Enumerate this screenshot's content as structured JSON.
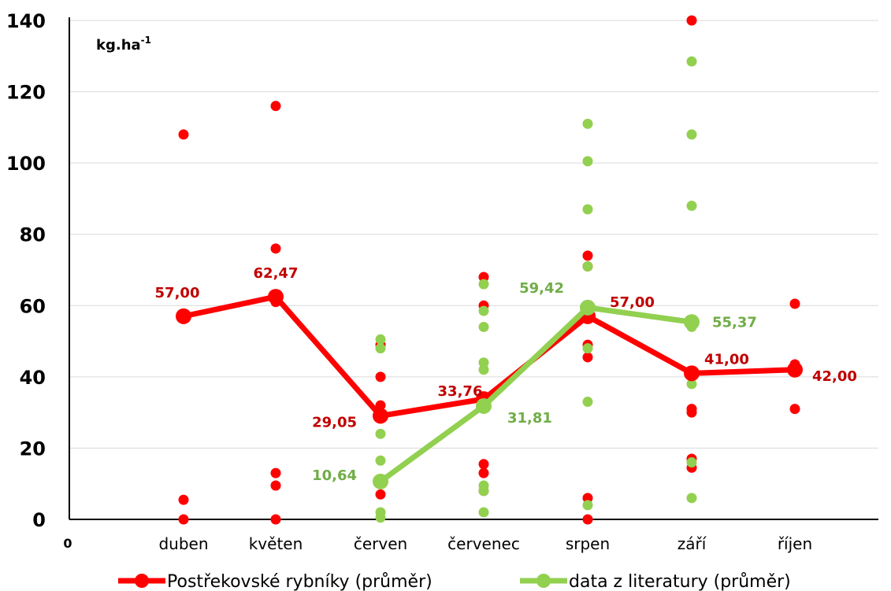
{
  "chart_data": {
    "type": "line",
    "title": "",
    "xlabel": "",
    "ylabel": "",
    "unit_label": "kg.ha",
    "unit_superscript": "-1",
    "origin_label": "0",
    "ylim": [
      0,
      140
    ],
    "yticks": [
      "0",
      "20",
      "40",
      "60",
      "80",
      "100",
      "120",
      "140"
    ],
    "grid": true,
    "legend_position": "bottom",
    "categories": [
      "duben",
      "květen",
      "červen",
      "červenec",
      "srpen",
      "září",
      "říjen"
    ],
    "series": [
      {
        "name": "Postřekovské rybníky (průměr)",
        "color": "#ff0000",
        "label_color": "#c00000",
        "mean": [
          57.0,
          62.47,
          29.05,
          33.76,
          57.0,
          41.0,
          42.0
        ],
        "mean_labels": [
          "57,00",
          "62,47",
          "29,05",
          "33,76",
          "57,00",
          "41,00",
          "42,00"
        ],
        "points": [
          [
            0,
            108
          ],
          [
            0,
            5.5
          ],
          [
            0,
            0
          ],
          [
            1,
            116
          ],
          [
            1,
            76
          ],
          [
            1,
            61
          ],
          [
            1,
            13
          ],
          [
            1,
            9.5
          ],
          [
            1,
            0
          ],
          [
            2,
            49
          ],
          [
            2,
            40
          ],
          [
            2,
            32
          ],
          [
            2,
            10
          ],
          [
            2,
            7
          ],
          [
            3,
            68
          ],
          [
            3,
            60
          ],
          [
            3,
            33
          ],
          [
            3,
            15.5
          ],
          [
            3,
            13
          ],
          [
            3,
            8
          ],
          [
            4,
            74
          ],
          [
            4,
            71
          ],
          [
            4,
            49
          ],
          [
            4,
            45.5
          ],
          [
            4,
            6
          ],
          [
            4,
            0
          ],
          [
            5,
            140
          ],
          [
            5,
            31
          ],
          [
            5,
            30
          ],
          [
            5,
            17
          ],
          [
            5,
            14.5
          ],
          [
            6,
            60.5
          ],
          [
            6,
            43.5
          ],
          [
            6,
            31
          ]
        ]
      },
      {
        "name": "data z literatury (průměr)",
        "color": "#92d050",
        "label_color": "#70ad47",
        "mean": [
          null,
          null,
          10.64,
          31.81,
          59.42,
          55.37,
          null
        ],
        "mean_labels": [
          null,
          null,
          "10,64",
          "31,81",
          "59,42",
          "55,37",
          null
        ],
        "points": [
          [
            2,
            50.5
          ],
          [
            2,
            48
          ],
          [
            2,
            24
          ],
          [
            2,
            16.5
          ],
          [
            2,
            10.5
          ],
          [
            2,
            2
          ],
          [
            2,
            0.5
          ],
          [
            3,
            66
          ],
          [
            3,
            58.5
          ],
          [
            3,
            54
          ],
          [
            3,
            44
          ],
          [
            3,
            42
          ],
          [
            3,
            32
          ],
          [
            3,
            9.5
          ],
          [
            3,
            8
          ],
          [
            3,
            2
          ],
          [
            4,
            111
          ],
          [
            4,
            100.5
          ],
          [
            4,
            87
          ],
          [
            4,
            71
          ],
          [
            4,
            48
          ],
          [
            4,
            33
          ],
          [
            4,
            4
          ],
          [
            5,
            128.5
          ],
          [
            5,
            108
          ],
          [
            5,
            88
          ],
          [
            5,
            54
          ],
          [
            5,
            38
          ],
          [
            5,
            16
          ],
          [
            5,
            6
          ]
        ]
      }
    ]
  }
}
